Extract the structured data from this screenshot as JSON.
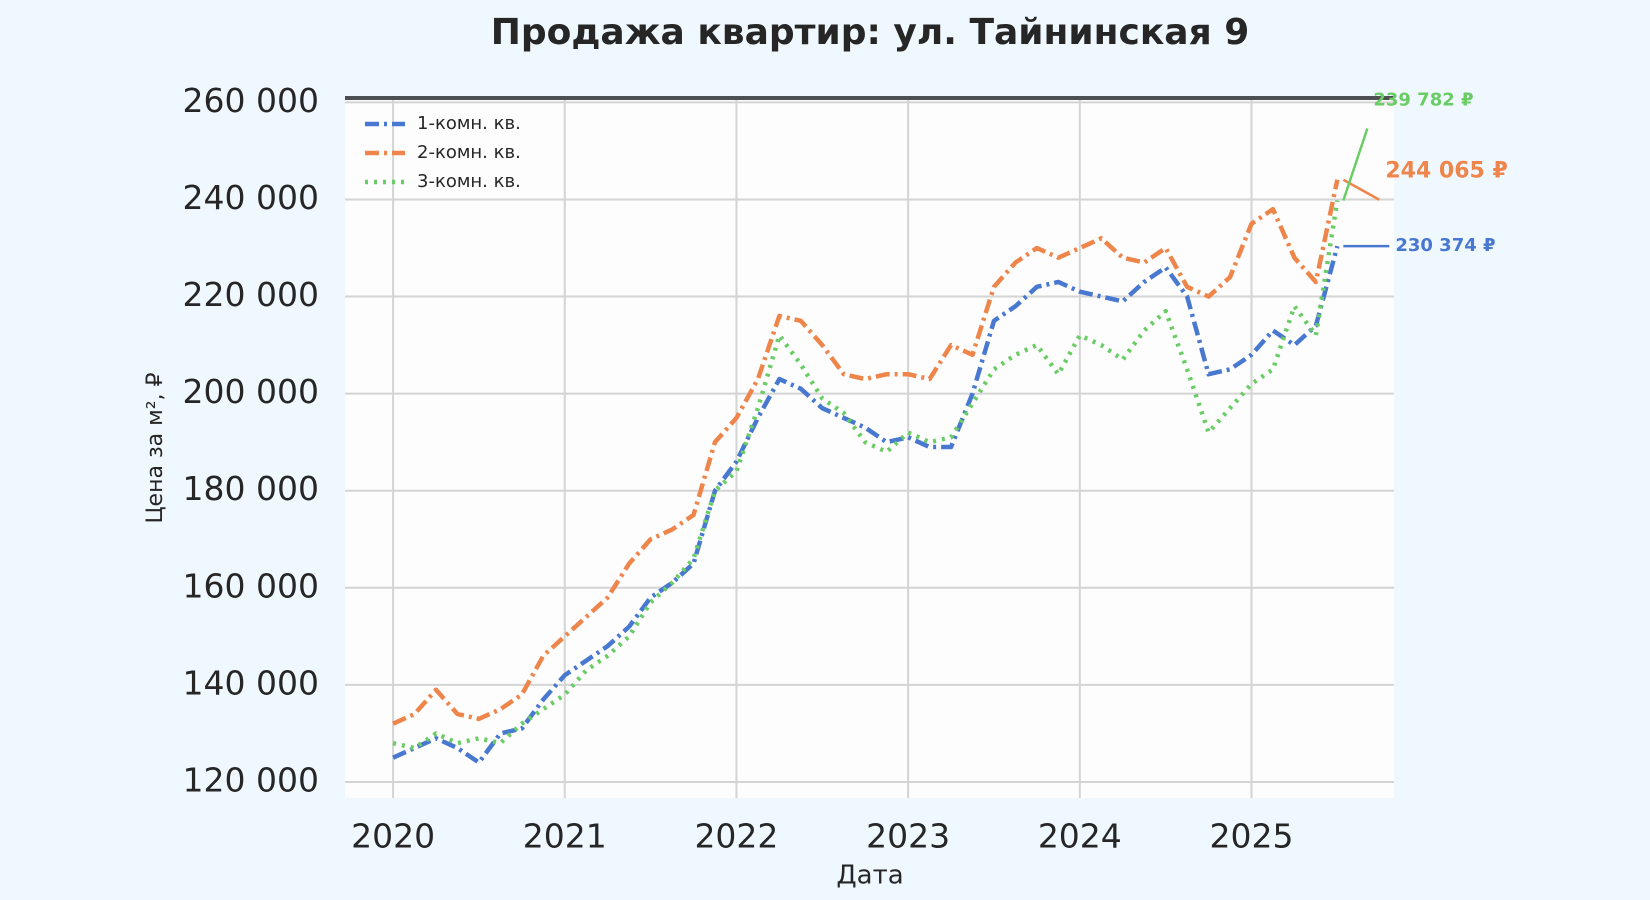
{
  "chart_data": {
    "type": "line",
    "title": "Продажа квартир: ул. Тайнинская 9",
    "xlabel": "Дата",
    "ylabel": "Цена за м², ₽",
    "x": [
      2020.0,
      2020.125,
      2020.25,
      2020.375,
      2020.5,
      2020.625,
      2020.75,
      2020.875,
      2021.0,
      2021.125,
      2021.25,
      2021.375,
      2021.5,
      2021.625,
      2021.75,
      2021.875,
      2022.0,
      2022.125,
      2022.25,
      2022.375,
      2022.5,
      2022.625,
      2022.75,
      2022.875,
      2023.0,
      2023.125,
      2023.25,
      2023.375,
      2023.5,
      2023.625,
      2023.75,
      2023.875,
      2024.0,
      2024.125,
      2024.25,
      2024.375,
      2024.5,
      2024.625,
      2024.75,
      2024.875,
      2025.0,
      2025.125,
      2025.25,
      2025.375,
      2025.5
    ],
    "series": [
      {
        "name": "1-комн. кв.",
        "color": "#4878d0",
        "dash": "14 5 3 5",
        "values": [
          125000,
          127000,
          129000,
          127000,
          124000,
          130000,
          131000,
          137000,
          142000,
          145000,
          148000,
          152000,
          158000,
          161000,
          165000,
          180000,
          186000,
          195000,
          203000,
          201000,
          197000,
          195000,
          193000,
          190000,
          191000,
          189000,
          189000,
          200000,
          215000,
          218000,
          222000,
          223000,
          221000,
          220000,
          219000,
          223000,
          226000,
          220000,
          204000,
          205000,
          208000,
          213000,
          210000,
          214000,
          230374
        ],
        "value_labels": [
          null,
          null,
          null,
          null,
          null,
          null,
          null,
          null,
          null,
          null,
          null,
          null,
          null,
          null,
          null,
          null,
          null,
          null,
          null,
          null,
          null,
          null,
          null,
          null,
          null,
          null,
          null,
          null,
          null,
          null,
          null,
          null,
          null,
          null,
          null,
          null,
          null,
          null,
          null,
          null,
          null,
          null,
          null,
          null,
          "230 374 ₽"
        ]
      },
      {
        "name": "2-комн. кв.",
        "color": "#ee854a",
        "dash": "14 5 3 5",
        "values": [
          132000,
          134000,
          139000,
          134000,
          133000,
          135000,
          138000,
          146000,
          150000,
          154000,
          158000,
          165000,
          170000,
          172000,
          175000,
          190000,
          195000,
          203000,
          216000,
          215000,
          210000,
          204000,
          203000,
          204000,
          204000,
          203000,
          210000,
          208000,
          222000,
          227000,
          230000,
          228000,
          230000,
          232000,
          228000,
          227000,
          230000,
          222000,
          220000,
          224000,
          235000,
          238000,
          228000,
          223000,
          244065
        ],
        "value_labels": [
          null,
          null,
          null,
          null,
          null,
          null,
          null,
          null,
          null,
          null,
          null,
          null,
          null,
          null,
          null,
          null,
          null,
          null,
          null,
          null,
          null,
          null,
          null,
          null,
          null,
          null,
          null,
          null,
          null,
          null,
          null,
          null,
          null,
          null,
          null,
          null,
          null,
          null,
          null,
          null,
          null,
          null,
          null,
          null,
          "244 065 ₽"
        ]
      },
      {
        "name": "3-комн. кв.",
        "color": "#6acc64",
        "dash": "3 6",
        "values": [
          128000,
          127000,
          130000,
          128000,
          129000,
          128000,
          132000,
          135000,
          138000,
          143000,
          146000,
          150000,
          157000,
          161000,
          166000,
          180000,
          184000,
          197000,
          212000,
          206000,
          199000,
          196000,
          190000,
          188000,
          192000,
          190000,
          191000,
          198000,
          205000,
          208000,
          210000,
          204000,
          212000,
          210000,
          207000,
          213000,
          217000,
          205000,
          192000,
          197000,
          202000,
          205000,
          218000,
          212000,
          239782
        ],
        "value_labels": [
          null,
          null,
          null,
          null,
          null,
          null,
          null,
          null,
          null,
          null,
          null,
          null,
          null,
          null,
          null,
          null,
          null,
          null,
          null,
          null,
          null,
          null,
          null,
          null,
          null,
          null,
          null,
          null,
          null,
          null,
          null,
          null,
          null,
          null,
          null,
          null,
          null,
          null,
          null,
          null,
          null,
          null,
          null,
          null,
          "239 782 ₽"
        ]
      }
    ],
    "xlim": [
      2019.72,
      2025.83
    ],
    "xticks": [
      2020,
      2021,
      2022,
      2023,
      2024,
      2025
    ],
    "ylim": [
      116700,
      260900
    ],
    "yticks": [
      {
        "value": 120000,
        "label": "120 000"
      },
      {
        "value": 140000,
        "label": "140 000"
      },
      {
        "value": 160000,
        "label": "160 000"
      },
      {
        "value": 180000,
        "label": "180 000"
      },
      {
        "value": 200000,
        "label": "200 000"
      },
      {
        "value": 220000,
        "label": "220 000"
      },
      {
        "value": 240000,
        "label": "240 000"
      },
      {
        "value": 260000,
        "label": "260 000"
      }
    ],
    "grid": true,
    "legend": "upper left"
  }
}
